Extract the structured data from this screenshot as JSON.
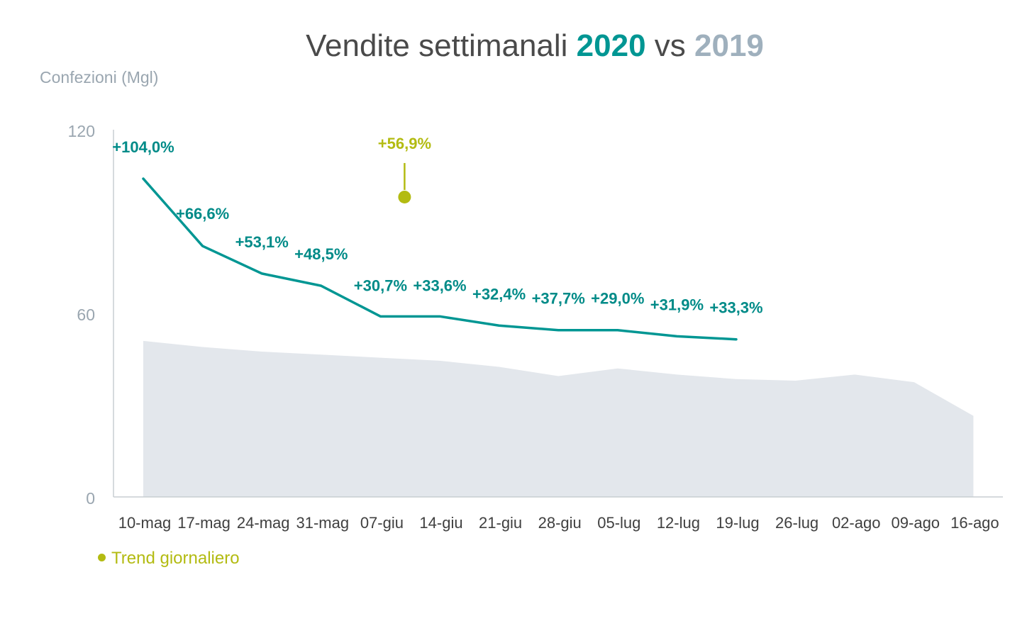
{
  "chart_data": {
    "type": "line",
    "title": {
      "text_main": "Vendite settimanali ",
      "text_2020": "2020",
      "text_vs": " vs ",
      "text_2019": "2019"
    },
    "ylabel": "Confezioni (Mgl)",
    "xlabel": "",
    "ylim": [
      0,
      120
    ],
    "yticks": [
      0,
      60,
      120
    ],
    "categories": [
      "10-mag",
      "17-mag",
      "24-mag",
      "31-mag",
      "07-giu",
      "14-giu",
      "21-giu",
      "28-giu",
      "05-lug",
      "12-lug",
      "19-lug",
      "26-lug",
      "02-ago",
      "09-ago",
      "16-ago"
    ],
    "series": [
      {
        "name": "2020",
        "kind": "line",
        "color": "#009693",
        "values": [
          104,
          82,
          73,
          69,
          59,
          59,
          56,
          54.5,
          54.5,
          52.5,
          51.5,
          null,
          null,
          null,
          null
        ],
        "labels": [
          "+104,0%",
          "+66,6%",
          "+53,1%",
          "+48,5%",
          "+30,7%",
          "+33,6%",
          "+32,4%",
          "+37,7%",
          "+29,0%",
          "+31,9%",
          "+33,3%",
          "",
          "",
          "",
          ""
        ]
      },
      {
        "name": "2019",
        "kind": "area",
        "color": "#e3e7ec",
        "values": [
          51,
          49,
          47.5,
          46.5,
          45.5,
          44.5,
          42.5,
          39.5,
          42,
          40,
          38.5,
          38,
          40,
          37.5,
          26.5
        ]
      }
    ],
    "annotations": [
      {
        "category": "07-giu",
        "value": 98,
        "label": "+56,9%",
        "color": "#b3bb12"
      }
    ],
    "legend": {
      "label": "Trend giornaliero",
      "color": "#b3bb12",
      "position": "bottom-left"
    },
    "grid": false
  }
}
